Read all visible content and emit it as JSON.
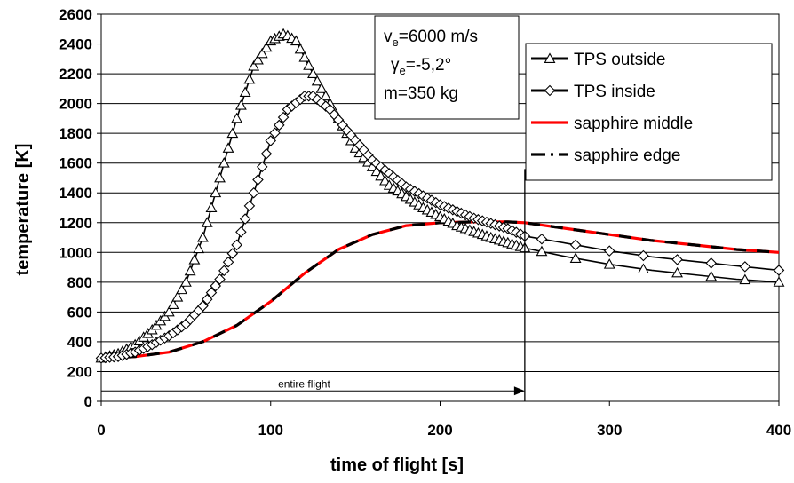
{
  "chart_data": {
    "type": "line",
    "xlabel": "time of flight [s]",
    "ylabel": "temperature [K]",
    "xlim": [
      0,
      400
    ],
    "ylim": [
      0,
      2600
    ],
    "xticks": [
      "0",
      "100",
      "200",
      "300",
      "400"
    ],
    "yticks": [
      "0",
      "200",
      "400",
      "600",
      "800",
      "1000",
      "1200",
      "1400",
      "1600",
      "1800",
      "2000",
      "2200",
      "2400",
      "2600"
    ],
    "grid": "horizontal",
    "legend_position": "top-right",
    "info_box": {
      "line1_main": "v",
      "line1_sub": "e",
      "line1_rest": "=6000 m/s",
      "line2_main": "γ",
      "line2_sub": "e",
      "line2_rest": "=-5,2°",
      "line3": "m=350 kg"
    },
    "annotation": {
      "text": "entire flight",
      "x_start": 0,
      "x_end": 250,
      "y": 70,
      "divider_x": 250
    },
    "series": [
      {
        "name": "TPS outside",
        "marker": "triangle",
        "color": "#000000",
        "points": [
          [
            0,
            290
          ],
          [
            10,
            320
          ],
          [
            20,
            380
          ],
          [
            30,
            480
          ],
          [
            40,
            600
          ],
          [
            50,
            800
          ],
          [
            60,
            1100
          ],
          [
            70,
            1500
          ],
          [
            80,
            1900
          ],
          [
            90,
            2250
          ],
          [
            100,
            2420
          ],
          [
            108,
            2470
          ],
          [
            115,
            2420
          ],
          [
            125,
            2200
          ],
          [
            135,
            2000
          ],
          [
            150,
            1700
          ],
          [
            170,
            1450
          ],
          [
            190,
            1300
          ],
          [
            210,
            1180
          ],
          [
            230,
            1100
          ],
          [
            250,
            1030
          ],
          [
            275,
            970
          ],
          [
            300,
            920
          ],
          [
            325,
            880
          ],
          [
            350,
            850
          ],
          [
            375,
            820
          ],
          [
            400,
            800
          ]
        ]
      },
      {
        "name": "TPS inside",
        "marker": "diamond",
        "color": "#000000",
        "points": [
          [
            0,
            290
          ],
          [
            10,
            300
          ],
          [
            20,
            330
          ],
          [
            30,
            380
          ],
          [
            40,
            440
          ],
          [
            50,
            520
          ],
          [
            60,
            640
          ],
          [
            70,
            820
          ],
          [
            80,
            1050
          ],
          [
            90,
            1400
          ],
          [
            100,
            1750
          ],
          [
            110,
            1960
          ],
          [
            120,
            2050
          ],
          [
            125,
            2050
          ],
          [
            135,
            1960
          ],
          [
            145,
            1820
          ],
          [
            160,
            1620
          ],
          [
            180,
            1440
          ],
          [
            200,
            1320
          ],
          [
            220,
            1230
          ],
          [
            240,
            1160
          ],
          [
            250,
            1110
          ],
          [
            275,
            1060
          ],
          [
            300,
            1010
          ],
          [
            325,
            970
          ],
          [
            350,
            940
          ],
          [
            375,
            910
          ],
          [
            400,
            880
          ]
        ]
      },
      {
        "name": "sapphire middle",
        "marker": "none",
        "color": "#ff0000",
        "points": [
          [
            0,
            290
          ],
          [
            20,
            300
          ],
          [
            40,
            330
          ],
          [
            60,
            400
          ],
          [
            80,
            510
          ],
          [
            100,
            670
          ],
          [
            120,
            860
          ],
          [
            140,
            1020
          ],
          [
            160,
            1120
          ],
          [
            180,
            1180
          ],
          [
            200,
            1200
          ],
          [
            220,
            1205
          ],
          [
            240,
            1205
          ],
          [
            250,
            1200
          ],
          [
            275,
            1160
          ],
          [
            300,
            1120
          ],
          [
            325,
            1080
          ],
          [
            350,
            1050
          ],
          [
            375,
            1020
          ],
          [
            400,
            1000
          ]
        ]
      },
      {
        "name": "sapphire edge",
        "marker": "none",
        "color": "#000000",
        "dashed": true,
        "points": [
          [
            0,
            290
          ],
          [
            20,
            300
          ],
          [
            40,
            330
          ],
          [
            60,
            400
          ],
          [
            80,
            510
          ],
          [
            100,
            670
          ],
          [
            120,
            860
          ],
          [
            140,
            1020
          ],
          [
            160,
            1120
          ],
          [
            180,
            1180
          ],
          [
            200,
            1200
          ],
          [
            220,
            1205
          ],
          [
            240,
            1205
          ],
          [
            250,
            1200
          ],
          [
            275,
            1160
          ],
          [
            300,
            1120
          ],
          [
            325,
            1080
          ],
          [
            350,
            1050
          ],
          [
            375,
            1020
          ],
          [
            400,
            1000
          ]
        ]
      }
    ]
  }
}
